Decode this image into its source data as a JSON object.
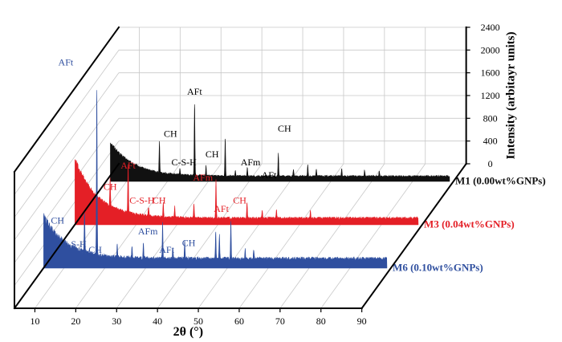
{
  "chart_data": {
    "type": "line",
    "style": "3d-waterfall",
    "xlabel": "2θ (°)",
    "ylabel": "Intensity (arbitayr units)",
    "xlim": [
      5,
      90
    ],
    "ylim": [
      0,
      2400
    ],
    "x_ticks": [
      "10",
      "20",
      "30",
      "40",
      "50",
      "60",
      "70",
      "80",
      "90"
    ],
    "y_ticks": [
      "0",
      "400",
      "800",
      "1200",
      "1600",
      "2000",
      "2400"
    ],
    "grid": true,
    "series": [
      {
        "name": "M1 (0.00wt%GNPs)",
        "color": "#111111",
        "background": {
          "start_x": 6,
          "start": 680,
          "decay": 5.5,
          "floor": 85,
          "noise": 30
        },
        "peaks": [
          {
            "x": 18.0,
            "y": 540
          },
          {
            "x": 23.0,
            "y": 110
          },
          {
            "x": 26.6,
            "y": 1290
          },
          {
            "x": 29.4,
            "y": 170
          },
          {
            "x": 34.1,
            "y": 680
          },
          {
            "x": 36.6,
            "y": 100
          },
          {
            "x": 39.5,
            "y": 150
          },
          {
            "x": 47.1,
            "y": 410
          },
          {
            "x": 50.8,
            "y": 120
          },
          {
            "x": 54.3,
            "y": 190
          },
          {
            "x": 56.4,
            "y": 140
          },
          {
            "x": 62.6,
            "y": 140
          },
          {
            "x": 68.2,
            "y": 110
          },
          {
            "x": 71.8,
            "y": 100
          }
        ]
      },
      {
        "name": "M3 (0.04wt%GNPs)",
        "color": "#e41f26",
        "background": {
          "start_x": 5,
          "start": 1140,
          "decay": 5.5,
          "floor": 110,
          "noise": 45
        },
        "peaks": [
          {
            "x": 13.6,
            "y": 490
          },
          {
            "x": 18.0,
            "y": 860
          },
          {
            "x": 23.0,
            "y": 170
          },
          {
            "x": 26.6,
            "y": 260
          },
          {
            "x": 29.4,
            "y": 190
          },
          {
            "x": 34.1,
            "y": 270
          },
          {
            "x": 39.5,
            "y": 660
          },
          {
            "x": 47.1,
            "y": 280
          },
          {
            "x": 50.8,
            "y": 140
          },
          {
            "x": 54.3,
            "y": 160
          },
          {
            "x": 62.6,
            "y": 120
          }
        ]
      },
      {
        "name": "M6 (0.10wt%GNPs)",
        "color": "#2f4f9f",
        "background": {
          "start_x": 5,
          "start": 900,
          "decay": 5.5,
          "floor": 160,
          "noise": 60
        },
        "peaks": [
          {
            "x": 15.0,
            "y": 720
          },
          {
            "x": 18.0,
            "y": 2950
          },
          {
            "x": 23.0,
            "y": 250
          },
          {
            "x": 26.6,
            "y": 210
          },
          {
            "x": 29.4,
            "y": 260
          },
          {
            "x": 34.1,
            "y": 630
          },
          {
            "x": 36.6,
            "y": 220
          },
          {
            "x": 39.5,
            "y": 330
          },
          {
            "x": 47.1,
            "y": 480
          },
          {
            "x": 48.0,
            "y": 420
          },
          {
            "x": 50.8,
            "y": 680
          },
          {
            "x": 54.3,
            "y": 170
          },
          {
            "x": 56.4,
            "y": 150
          }
        ]
      }
    ],
    "annotations": [
      {
        "series": 0,
        "text": "AFt",
        "x": 26.6,
        "y": 1520
      },
      {
        "series": 0,
        "text": "CH",
        "x": 20.7,
        "y": 780
      },
      {
        "series": 0,
        "text": "C-S-H",
        "x": 24.0,
        "y": 280
      },
      {
        "series": 0,
        "text": "CH",
        "x": 30.9,
        "y": 420
      },
      {
        "series": 0,
        "text": "AFm",
        "x": 40.3,
        "y": 280
      },
      {
        "series": 0,
        "text": "AFt",
        "x": 44.8,
        "y": 50
      },
      {
        "series": 0,
        "text": "CH",
        "x": 48.6,
        "y": 870
      },
      {
        "series": 1,
        "text": "CH",
        "x": 13.6,
        "y": 610
      },
      {
        "series": 1,
        "text": "AFt",
        "x": 18.0,
        "y": 980
      },
      {
        "series": 1,
        "text": "C-S-H",
        "x": 21.4,
        "y": 370
      },
      {
        "series": 1,
        "text": "CH",
        "x": 25.6,
        "y": 370
      },
      {
        "series": 1,
        "text": "AFm",
        "x": 36.3,
        "y": 770
      },
      {
        "series": 1,
        "text": "AFt",
        "x": 40.8,
        "y": 220
      },
      {
        "series": 1,
        "text": "CH",
        "x": 45.3,
        "y": 370
      },
      {
        "series": 2,
        "text": "AFt",
        "x": 10.4,
        "y": 3560
      },
      {
        "series": 2,
        "text": "CH",
        "x": 8.4,
        "y": 780
      },
      {
        "series": 2,
        "text": "C-S-H",
        "x": 12.4,
        "y": 360
      },
      {
        "series": 2,
        "text": "CH",
        "x": 17.6,
        "y": 260
      },
      {
        "series": 2,
        "text": "AFm",
        "x": 30.5,
        "y": 590
      },
      {
        "series": 2,
        "text": "AFt",
        "x": 35.1,
        "y": 260
      },
      {
        "series": 2,
        "text": "CH",
        "x": 40.5,
        "y": 380
      }
    ]
  }
}
